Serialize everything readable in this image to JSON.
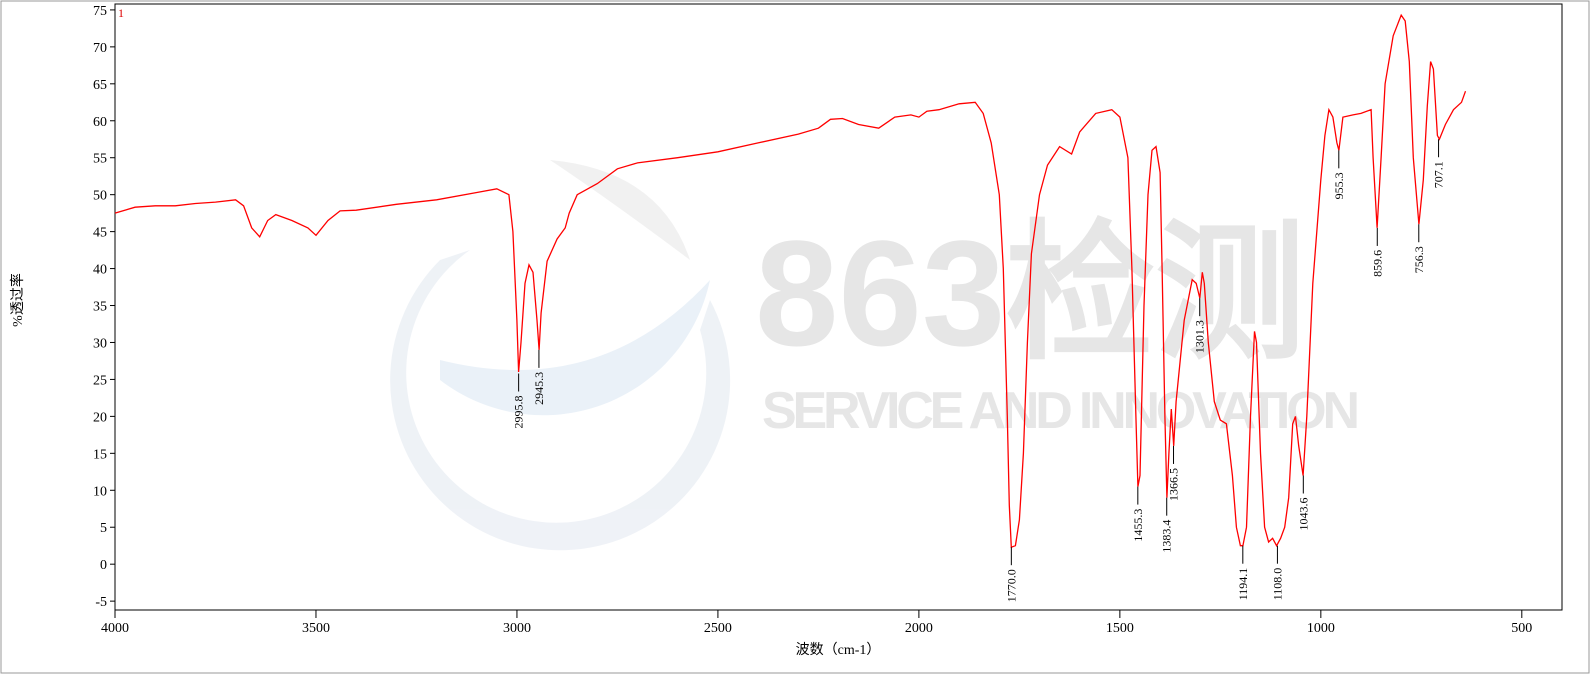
{
  "chart_data": {
    "type": "line",
    "y_label": "%透过率",
    "x_label": "波数（cm-1）",
    "watermark": [
      "863检测",
      "SERVICE AND INNOVATION"
    ],
    "xlim": [
      4000,
      400
    ],
    "ylim": [
      -6.2,
      75.8
    ],
    "xticks": [
      4000,
      3500,
      3000,
      2500,
      2000,
      1500,
      1000,
      500
    ],
    "yticks": [
      -5,
      0,
      5,
      10,
      15,
      20,
      25,
      30,
      35,
      40,
      45,
      50,
      55,
      60,
      65,
      70,
      75
    ],
    "series": [
      {
        "name": "1",
        "color": "#ff0000",
        "x": [
          4000,
          3950,
          3900,
          3850,
          3800,
          3750,
          3700,
          3680,
          3660,
          3640,
          3620,
          3600,
          3560,
          3520,
          3500,
          3470,
          3440,
          3400,
          3300,
          3200,
          3100,
          3050,
          3020,
          3010,
          3000,
          2996,
          2990,
          2980,
          2970,
          2960,
          2950,
          2945,
          2940,
          2925,
          2900,
          2880,
          2870,
          2850,
          2800,
          2750,
          2700,
          2600,
          2500,
          2400,
          2300,
          2250,
          2220,
          2190,
          2150,
          2100,
          2060,
          2020,
          2000,
          1980,
          1950,
          1900,
          1860,
          1840,
          1820,
          1800,
          1790,
          1780,
          1775,
          1770,
          1760,
          1750,
          1740,
          1730,
          1720,
          1700,
          1680,
          1650,
          1620,
          1600,
          1560,
          1520,
          1500,
          1480,
          1470,
          1460,
          1455,
          1450,
          1440,
          1430,
          1420,
          1410,
          1400,
          1395,
          1388,
          1383,
          1378,
          1372,
          1366,
          1360,
          1340,
          1320,
          1310,
          1301,
          1295,
          1290,
          1280,
          1265,
          1250,
          1235,
          1220,
          1210,
          1200,
          1194,
          1185,
          1175,
          1165,
          1160,
          1150,
          1140,
          1130,
          1120,
          1110,
          1100,
          1090,
          1080,
          1070,
          1063,
          1055,
          1044,
          1035,
          1020,
          1000,
          990,
          980,
          970,
          960,
          955,
          945,
          920,
          900,
          875,
          870,
          860,
          850,
          840,
          820,
          800,
          790,
          780,
          770,
          756,
          745,
          735,
          727,
          720,
          710,
          705,
          690,
          670,
          650,
          640
        ],
        "values": [
          47.5,
          48.3,
          48.5,
          48.5,
          48.8,
          49.0,
          49.3,
          48.5,
          45.5,
          44.3,
          46.5,
          47.3,
          46.5,
          45.5,
          44.5,
          46.5,
          47.8,
          47.9,
          48.7,
          49.3,
          50.3,
          50.8,
          50.0,
          45,
          33,
          26,
          30,
          38,
          40.5,
          39.5,
          33,
          29,
          34,
          41,
          44,
          45.5,
          47.5,
          50,
          51.5,
          53.5,
          54.3,
          55,
          55.8,
          57,
          58.2,
          59,
          60.2,
          60.3,
          59.5,
          59,
          60.5,
          60.8,
          60.5,
          61.3,
          61.5,
          62.3,
          62.5,
          61,
          57,
          50,
          40,
          20,
          8,
          2.3,
          2.5,
          6,
          15,
          30,
          42,
          50,
          54,
          56.5,
          55.5,
          58.5,
          61,
          61.5,
          60.5,
          55,
          40,
          20,
          10.5,
          12,
          35,
          50,
          56,
          56.5,
          53,
          40,
          20,
          9,
          15,
          21,
          16,
          22,
          33,
          38.5,
          38,
          36,
          39.5,
          38,
          30,
          22,
          19.5,
          19,
          12,
          5,
          2.5,
          2.5,
          5,
          20,
          31.5,
          30,
          15,
          5,
          3,
          3.5,
          2.5,
          3.5,
          5,
          9,
          19,
          20,
          16,
          12,
          20,
          38,
          52,
          58,
          61.5,
          60.5,
          57,
          56,
          60.5,
          60.8,
          61,
          61.5,
          55,
          45.5,
          55,
          65,
          71.5,
          74.3,
          73.5,
          68,
          55,
          46,
          52,
          62,
          68,
          67,
          58,
          57.5,
          59.5,
          61.5,
          62.5,
          64
        ]
      }
    ],
    "peaks": [
      {
        "x": 2995.8,
        "y": 25.8,
        "label": "2995.8"
      },
      {
        "x": 2945.3,
        "y": 29,
        "label": "2945.3"
      },
      {
        "x": 1770.0,
        "y": 2.3,
        "label": "1770.0"
      },
      {
        "x": 1455.3,
        "y": 10.5,
        "label": "1455.3"
      },
      {
        "x": 1383.4,
        "y": 9,
        "label": "1383.4"
      },
      {
        "x": 1366.5,
        "y": 16,
        "label": "1366.5"
      },
      {
        "x": 1301.3,
        "y": 36,
        "label": "1301.3"
      },
      {
        "x": 1194.1,
        "y": 2.5,
        "label": "1194.1"
      },
      {
        "x": 1108.0,
        "y": 2.5,
        "label": "1108.0"
      },
      {
        "x": 1043.6,
        "y": 12,
        "label": "1043.6"
      },
      {
        "x": 955.3,
        "y": 56,
        "label": "955.3"
      },
      {
        "x": 859.6,
        "y": 45.5,
        "label": "859.6"
      },
      {
        "x": 756.3,
        "y": 46,
        "label": "756.3"
      },
      {
        "x": 707.1,
        "y": 57.5,
        "label": "707.1"
      }
    ]
  }
}
